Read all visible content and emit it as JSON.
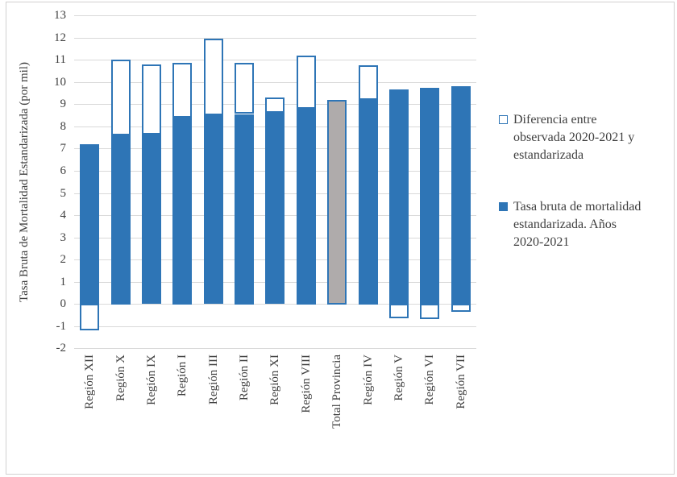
{
  "colors": {
    "accent_blue": "#2E75B6",
    "highlight_gray": "#AFABAB",
    "gridline": "#D9D9D9",
    "text": "#404040",
    "frame_border": "#D2D0D0"
  },
  "chart_data": {
    "type": "bar",
    "stacked": true,
    "orientation": "vertical",
    "title": "",
    "ylabel": "Tasa Bruta de Mortalidad Estandarizada (por mil)",
    "ylim": [
      -2,
      13
    ],
    "yticks": [
      13,
      12,
      11,
      10,
      9,
      8,
      7,
      6,
      5,
      4,
      3,
      2,
      1,
      0,
      -1,
      -2
    ],
    "grid": "horizontal",
    "legend_position": "right",
    "categories": [
      "Región XII",
      "Región X",
      "Región IX",
      "Región I",
      "Región III",
      "Región II",
      "Región XI",
      "Región VIII",
      "Total Provincia",
      "Región IV",
      "Región V",
      "Región VI",
      "Región VII"
    ],
    "series": [
      {
        "name": "Tasa bruta de mortalidad estandarizada. Años 2020-2021",
        "values": [
          7.2,
          7.6,
          7.65,
          8.4,
          8.5,
          8.55,
          8.6,
          8.8,
          9.2,
          9.2,
          9.65,
          9.75,
          9.8
        ],
        "fill": "#2E75B6",
        "highlight_index": 8,
        "highlight_fill": "#AFABAB"
      },
      {
        "name": "Diferencia entre observada 2020-2021 y estandarizada",
        "values": [
          -1.2,
          3.4,
          3.15,
          2.45,
          3.45,
          2.3,
          0.7,
          2.4,
          0,
          1.55,
          -0.65,
          -0.7,
          -0.35
        ],
        "fill": "#FFFFFF",
        "border": "#2E75B6"
      }
    ]
  },
  "legend": {
    "items": [
      {
        "label": "Diferencia entre observada 2020-2021 y estandarizada",
        "swatch": "outline"
      },
      {
        "label": "Tasa bruta de mortalidad estandarizada. Años 2020-2021",
        "swatch": "solid"
      }
    ]
  }
}
